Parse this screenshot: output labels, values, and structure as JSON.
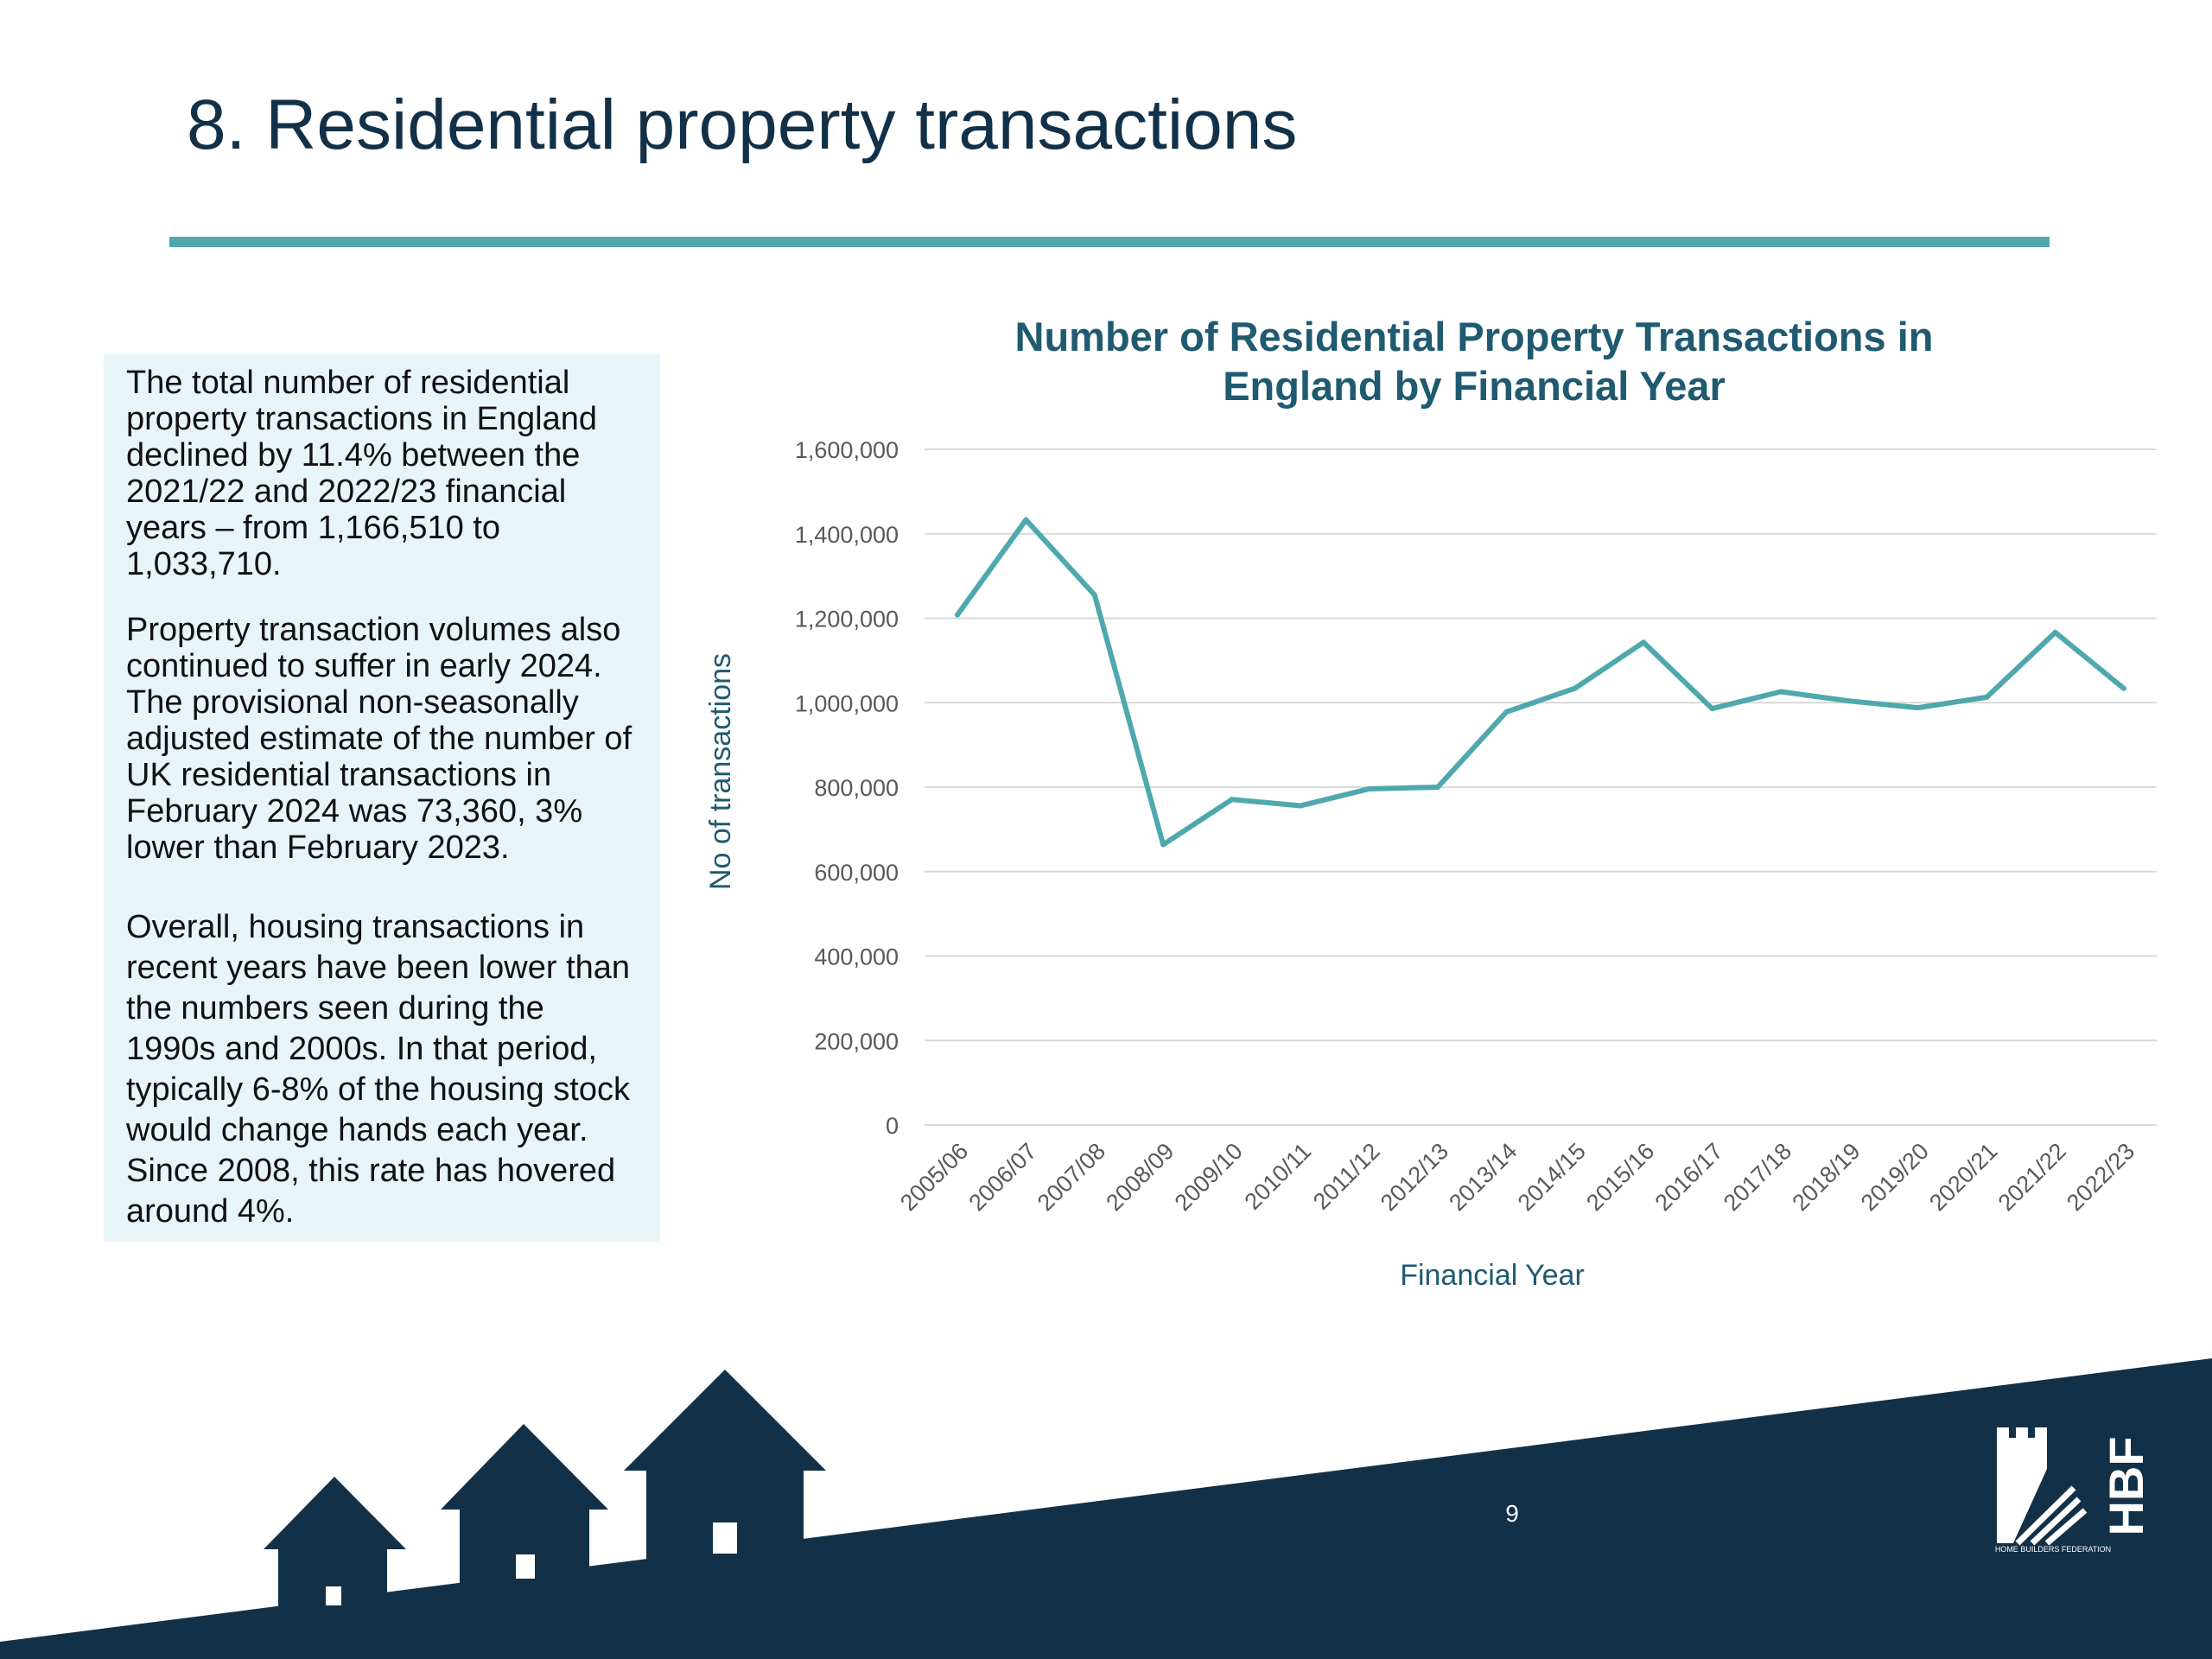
{
  "slide": {
    "title": "8. Residential property transactions",
    "page_number": "9"
  },
  "text_box": {
    "paragraphs": [
      "The total number of residential property transactions in England declined by 11.4% between the 2021/22 and 2022/23 financial years – from 1,166,510 to 1,033,710.",
      "Property transaction volumes also continued to suffer in early 2024. The provisional non-seasonally adjusted estimate of the number of UK residential transactions in February 2024 was 73,360, 3% lower than February 2023.",
      "Overall, housing transactions in recent years have been lower than the numbers seen during the 1990s and 2000s. In that period, typically 6-8% of the housing stock would change hands each year. Since 2008, this rate has hovered around 4%."
    ]
  },
  "logo": {
    "text": "HBF",
    "subtitle": "HOME BUILDERS FEDERATION"
  },
  "colors": {
    "title": "#123148",
    "accent": "#4ea8ae",
    "chart_title": "#1f5a70",
    "footer_navy": "#123148",
    "text_box_bg": "#e7f4f8"
  },
  "chart_data": {
    "type": "line",
    "title_lines": [
      "Number of Residential Property Transactions in",
      "England by Financial Year"
    ],
    "xlabel": "Financial Year",
    "ylabel": "No of transactions",
    "ylim": [
      0,
      1600000
    ],
    "y_ticks": [
      0,
      200000,
      400000,
      600000,
      800000,
      1000000,
      1200000,
      1400000,
      1600000
    ],
    "y_tick_labels": [
      "0",
      "200,000",
      "400,000",
      "600,000",
      "800,000",
      "1,000,000",
      "1,200,000",
      "1,400,000",
      "1,600,000"
    ],
    "grid": true,
    "legend": "none",
    "categories": [
      "2005/06",
      "2006/07",
      "2007/08",
      "2008/09",
      "2009/10",
      "2010/11",
      "2011/12",
      "2012/13",
      "2013/14",
      "2014/15",
      "2015/16",
      "2016/17",
      "2017/18",
      "2018/19",
      "2019/20",
      "2020/21",
      "2021/22",
      "2022/23"
    ],
    "series": [
      {
        "color": "#4ea8ae",
        "values": [
          1208000,
          1433000,
          1255000,
          664000,
          771000,
          756000,
          796000,
          800000,
          978000,
          1034000,
          1143000,
          986000,
          1026000,
          1004000,
          988000,
          1013000,
          1166510,
          1033710
        ]
      }
    ]
  }
}
